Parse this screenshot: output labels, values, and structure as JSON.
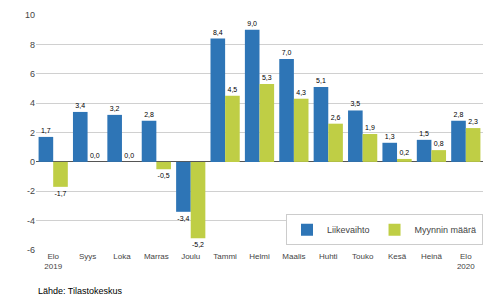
{
  "chart_data": {
    "type": "bar",
    "categories": [
      "Elo\n2019",
      "Syys",
      "Loka",
      "Marras",
      "Joulu",
      "Tammi",
      "Helmi",
      "Maalis",
      "Huhti",
      "Touko",
      "Kesä",
      "Heinä",
      "Elo\n2020"
    ],
    "series": [
      {
        "name": "Liikevaihto",
        "color": "#2E75B6",
        "values": [
          1.7,
          3.4,
          3.2,
          2.8,
          -3.4,
          8.4,
          9.0,
          7.0,
          5.1,
          3.5,
          1.3,
          1.5,
          2.8
        ],
        "value_labels": [
          "1,7",
          "3,4",
          "3,2",
          "2,8",
          "-3,4",
          "8,4",
          "9,0",
          "7,0",
          "5,1",
          "3,5",
          "1,3",
          "1,5",
          "2,8"
        ]
      },
      {
        "name": "Myynnin määrä",
        "color": "#BFCE45",
        "values": [
          -1.7,
          0.0,
          0.0,
          -0.5,
          -5.2,
          4.5,
          5.3,
          4.3,
          2.6,
          1.9,
          0.2,
          0.8,
          2.3
        ],
        "value_labels": [
          "-1,7",
          "0,0",
          "0,0",
          "-0,5",
          "-5,2",
          "4,5",
          "5,3",
          "4,3",
          "2,6",
          "1,9",
          "0,2",
          "0,8",
          "2,3"
        ]
      }
    ],
    "ylim": [
      -6,
      10
    ],
    "yticks": [
      -6,
      -4,
      -2,
      0,
      2,
      4,
      6,
      8,
      10
    ],
    "grid": true,
    "data_labels": true,
    "legend": "lower right",
    "annotations": [
      "Lähde: Tilastokeskus"
    ]
  }
}
